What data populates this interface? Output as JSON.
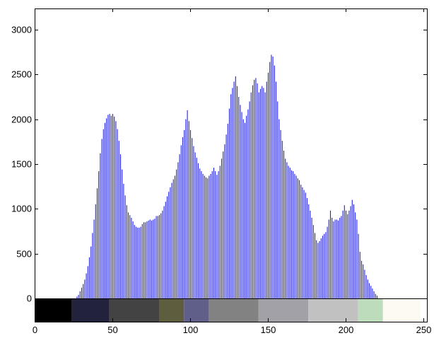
{
  "chart_data": {
    "type": "bar",
    "title": "",
    "xlabel": "",
    "ylabel": "",
    "xlim": [
      0,
      255
    ],
    "ylim": [
      0,
      3200
    ],
    "grid": false,
    "bar_color": "#1f1fe6",
    "x_ticks": [
      "0",
      "50",
      "100",
      "150",
      "200",
      "250"
    ],
    "y_ticks": [
      "0",
      "500",
      "1000",
      "1500",
      "2000",
      "2500",
      "3000"
    ],
    "x_tick_values": [
      0,
      50,
      100,
      150,
      200,
      250
    ],
    "y_tick_values": [
      0,
      500,
      1000,
      1500,
      2000,
      2500,
      3000
    ],
    "series": [
      {
        "values": [
          0,
          0,
          0,
          0,
          0,
          0,
          0,
          0,
          0,
          0,
          0,
          0,
          0,
          0,
          0,
          0,
          0,
          0,
          0,
          0,
          0,
          0,
          0,
          0,
          0,
          0,
          0,
          20,
          40,
          80,
          120,
          160,
          210,
          280,
          360,
          460,
          580,
          730,
          880,
          1050,
          1230,
          1420,
          1620,
          1780,
          1890,
          1960,
          2010,
          2050,
          2060,
          2040,
          2060,
          2030,
          1980,
          1890,
          1760,
          1610,
          1440,
          1280,
          1150,
          1040,
          960,
          930,
          900,
          860,
          820,
          800,
          790,
          790,
          800,
          830,
          850,
          850,
          860,
          870,
          880,
          870,
          880,
          890,
          920,
          920,
          930,
          950,
          980,
          1030,
          1080,
          1140,
          1190,
          1240,
          1290,
          1330,
          1370,
          1440,
          1520,
          1610,
          1710,
          1800,
          1880,
          2000,
          2100,
          1980,
          1880,
          1790,
          1700,
          1630,
          1570,
          1510,
          1450,
          1420,
          1390,
          1370,
          1350,
          1340,
          1370,
          1390,
          1420,
          1460,
          1420,
          1380,
          1420,
          1480,
          1560,
          1640,
          1720,
          1830,
          1950,
          2120,
          2280,
          2350,
          2420,
          2480,
          2370,
          2250,
          2160,
          2080,
          2000,
          1960,
          2040,
          2110,
          2200,
          2300,
          2380,
          2440,
          2460,
          2400,
          2300,
          2340,
          2370,
          2350,
          2300,
          2420,
          2520,
          2640,
          2720,
          2700,
          2600,
          2420,
          2200,
          2000,
          1880,
          1760,
          1650,
          1560,
          1520,
          1480,
          1460,
          1430,
          1420,
          1390,
          1370,
          1340,
          1320,
          1270,
          1240,
          1210,
          1180,
          1120,
          1050,
          980,
          900,
          820,
          730,
          650,
          620,
          640,
          670,
          700,
          720,
          740,
          800,
          880,
          980,
          900,
          860,
          880,
          880,
          870,
          900,
          920,
          980,
          1040,
          980,
          940,
          980,
          1030,
          1100,
          1050,
          960,
          880,
          720,
          520,
          420,
          380,
          320,
          260,
          210,
          170,
          140,
          110,
          80,
          50,
          30,
          0,
          0,
          0,
          0,
          0,
          0,
          0,
          0,
          0,
          0,
          0,
          0,
          0,
          0,
          0,
          0,
          0,
          0,
          0,
          0,
          0,
          0,
          0,
          0
        ]
      }
    ],
    "colorbar": [
      {
        "from": 0,
        "to": 24,
        "color": "#000000"
      },
      {
        "from": 24,
        "to": 48,
        "color": "#22223d"
      },
      {
        "from": 48,
        "to": 80,
        "color": "#434343"
      },
      {
        "from": 80,
        "to": 96,
        "color": "#5e5e3e"
      },
      {
        "from": 96,
        "to": 112,
        "color": "#5f5f8a"
      },
      {
        "from": 112,
        "to": 144,
        "color": "#828282"
      },
      {
        "from": 144,
        "to": 176,
        "color": "#a1a1a7"
      },
      {
        "from": 176,
        "to": 208,
        "color": "#c1c1c1"
      },
      {
        "from": 208,
        "to": 224,
        "color": "#bcdcbc"
      },
      {
        "from": 224,
        "to": 248,
        "color": "#fdfaf1"
      },
      {
        "from": 248,
        "to": 256,
        "color": "#ffffff"
      }
    ]
  }
}
